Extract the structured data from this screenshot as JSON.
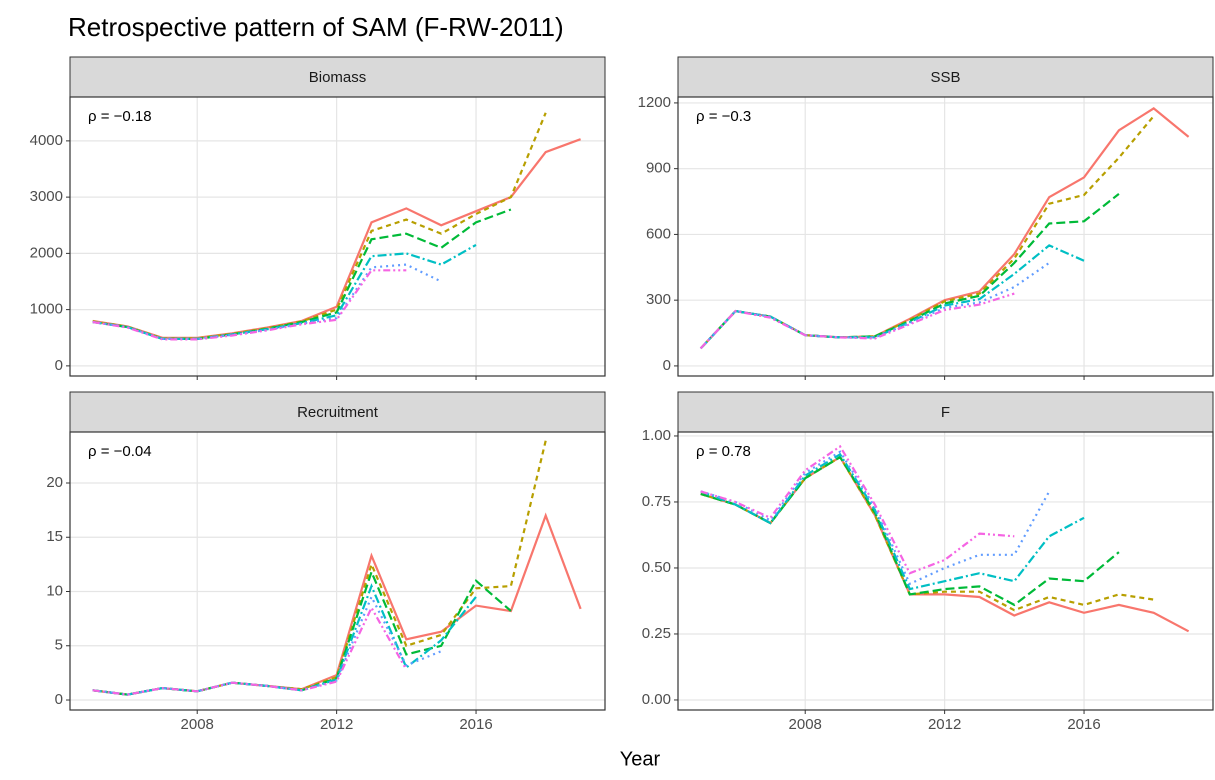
{
  "title": "Retrospective pattern of SAM (F-RW-2011)",
  "x_label": "Year",
  "chart_data": [
    {
      "type": "line",
      "title": "Biomass",
      "annotation": "ρ = −0.18",
      "x": [
        2005,
        2006,
        2007,
        2008,
        2009,
        2010,
        2011,
        2012,
        2013,
        2014,
        2015,
        2016,
        2017,
        2018,
        2019
      ],
      "xlim": [
        2004.35,
        2019.7
      ],
      "xticks": [
        2008,
        2012,
        2016
      ],
      "ylim": [
        -180,
        4780
      ],
      "yticks": [
        0,
        1000,
        2000,
        3000,
        4000
      ],
      "grid": true,
      "series": [
        {
          "color": "#F8766D",
          "dash": "none",
          "values": [
            800,
            700,
            500,
            500,
            580,
            680,
            800,
            1050,
            2550,
            2800,
            2500,
            2750,
            3000,
            3800,
            4030
          ]
        },
        {
          "color": "#B79F00",
          "dash": "5,4",
          "values": [
            790,
            700,
            490,
            490,
            570,
            670,
            790,
            1000,
            2400,
            2600,
            2350,
            2700,
            3000,
            4500,
            null
          ]
        },
        {
          "color": "#00BA38",
          "dash": "9,4",
          "values": [
            780,
            690,
            480,
            480,
            560,
            660,
            780,
            950,
            2250,
            2350,
            2100,
            2550,
            2780,
            null,
            null
          ]
        },
        {
          "color": "#00BFC4",
          "dash": "9,3,2,3",
          "values": [
            780,
            690,
            480,
            480,
            560,
            650,
            760,
            900,
            1950,
            2000,
            1800,
            2150,
            null,
            null,
            null
          ]
        },
        {
          "color": "#619CFF",
          "dash": "2,4",
          "values": [
            780,
            690,
            480,
            480,
            550,
            640,
            750,
            850,
            1750,
            1800,
            1500,
            null,
            null,
            null,
            null
          ]
        },
        {
          "color": "#F564E3",
          "dash": "7,3,2,3,2,3",
          "values": [
            780,
            680,
            470,
            470,
            540,
            630,
            740,
            820,
            1700,
            1700,
            null,
            null,
            null,
            null,
            null
          ]
        }
      ]
    },
    {
      "type": "line",
      "title": "SSB",
      "annotation": "ρ = −0.3",
      "x": [
        2005,
        2006,
        2007,
        2008,
        2009,
        2010,
        2011,
        2012,
        2013,
        2014,
        2015,
        2016,
        2017,
        2018,
        2019
      ],
      "xlim": [
        2004.35,
        2019.7
      ],
      "xticks": [
        2008,
        2012,
        2016
      ],
      "ylim": [
        -46,
        1227
      ],
      "yticks": [
        0,
        300,
        600,
        900,
        1200
      ],
      "grid": true,
      "series": [
        {
          "color": "#F8766D",
          "dash": "none",
          "values": [
            80,
            250,
            225,
            140,
            130,
            135,
            215,
            300,
            340,
            510,
            770,
            860,
            1075,
            1175,
            1045
          ]
        },
        {
          "color": "#B79F00",
          "dash": "5,4",
          "values": [
            80,
            250,
            225,
            140,
            130,
            135,
            210,
            295,
            330,
            490,
            740,
            780,
            950,
            1140,
            null
          ]
        },
        {
          "color": "#00BA38",
          "dash": "9,4",
          "values": [
            80,
            250,
            225,
            140,
            130,
            135,
            205,
            285,
            320,
            470,
            650,
            660,
            785,
            null,
            null
          ]
        },
        {
          "color": "#00BFC4",
          "dash": "9,3,2,3",
          "values": [
            80,
            250,
            225,
            140,
            130,
            130,
            200,
            275,
            305,
            420,
            550,
            480,
            null,
            null,
            null
          ]
        },
        {
          "color": "#619CFF",
          "dash": "2,4",
          "values": [
            80,
            250,
            225,
            140,
            130,
            130,
            195,
            265,
            290,
            360,
            470,
            null,
            null,
            null,
            null
          ]
        },
        {
          "color": "#F564E3",
          "dash": "7,3,2,3,2,3",
          "values": [
            80,
            250,
            220,
            140,
            130,
            125,
            190,
            255,
            280,
            330,
            null,
            null,
            null,
            null,
            null
          ]
        }
      ]
    },
    {
      "type": "line",
      "title": "Recruitment",
      "annotation": "ρ = −0.04",
      "x": [
        2005,
        2006,
        2007,
        2008,
        2009,
        2010,
        2011,
        2012,
        2013,
        2014,
        2015,
        2016,
        2017,
        2018,
        2019
      ],
      "xlim": [
        2004.35,
        2019.7
      ],
      "xticks": [
        2008,
        2012,
        2016
      ],
      "ylim": [
        -0.92,
        24.7
      ],
      "yticks": [
        0,
        5,
        10,
        15,
        20
      ],
      "grid": true,
      "series": [
        {
          "color": "#F8766D",
          "dash": "none",
          "values": [
            0.9,
            0.5,
            1.1,
            0.8,
            1.6,
            1.3,
            1.0,
            2.3,
            13.3,
            5.6,
            6.3,
            8.7,
            8.2,
            17.0,
            8.4
          ]
        },
        {
          "color": "#B79F00",
          "dash": "5,4",
          "values": [
            0.9,
            0.5,
            1.1,
            0.8,
            1.6,
            1.3,
            1.0,
            2.1,
            12.5,
            5.0,
            6.0,
            10.3,
            10.5,
            23.9,
            null
          ]
        },
        {
          "color": "#00BA38",
          "dash": "9,4",
          "values": [
            0.9,
            0.5,
            1.1,
            0.8,
            1.6,
            1.3,
            0.9,
            2.0,
            11.8,
            4.2,
            5.0,
            11.0,
            8.2,
            null,
            null
          ]
        },
        {
          "color": "#00BFC4",
          "dash": "9,3,2,3",
          "values": [
            0.9,
            0.5,
            1.1,
            0.8,
            1.6,
            1.3,
            0.9,
            1.9,
            10.5,
            3.0,
            5.5,
            9.5,
            null,
            null,
            null
          ]
        },
        {
          "color": "#619CFF",
          "dash": "2,4",
          "values": [
            0.9,
            0.5,
            1.1,
            0.8,
            1.6,
            1.3,
            0.9,
            1.8,
            9.5,
            3.2,
            4.5,
            null,
            null,
            null,
            null
          ]
        },
        {
          "color": "#F564E3",
          "dash": "7,3,2,3,2,3",
          "values": [
            0.9,
            0.5,
            1.1,
            0.8,
            1.6,
            1.3,
            0.9,
            1.7,
            8.5,
            2.8,
            null,
            null,
            null,
            null,
            null
          ]
        }
      ]
    },
    {
      "type": "line",
      "title": "F",
      "annotation": "ρ = 0.78",
      "x": [
        2005,
        2006,
        2007,
        2008,
        2009,
        2010,
        2011,
        2012,
        2013,
        2014,
        2015,
        2016,
        2017,
        2018,
        2019
      ],
      "xlim": [
        2004.35,
        2019.7
      ],
      "xticks": [
        2008,
        2012,
        2016
      ],
      "ylim": [
        -0.038,
        1.015
      ],
      "yticks": [
        {
          "value": 0,
          "label": "0.00"
        },
        {
          "value": 0.25,
          "label": "0.25"
        },
        {
          "value": 0.5,
          "label": "0.50"
        },
        {
          "value": 0.75,
          "label": "0.75"
        },
        {
          "value": 1,
          "label": "1.00"
        }
      ],
      "grid": true,
      "series": [
        {
          "color": "#F8766D",
          "dash": "none",
          "values": [
            0.78,
            0.74,
            0.67,
            0.84,
            0.92,
            0.7,
            0.4,
            0.4,
            0.39,
            0.32,
            0.37,
            0.33,
            0.36,
            0.33,
            0.26
          ]
        },
        {
          "color": "#B79F00",
          "dash": "5,4",
          "values": [
            0.78,
            0.74,
            0.67,
            0.84,
            0.92,
            0.7,
            0.4,
            0.41,
            0.41,
            0.34,
            0.39,
            0.36,
            0.4,
            0.38,
            null
          ]
        },
        {
          "color": "#00BA38",
          "dash": "9,4",
          "values": [
            0.78,
            0.74,
            0.67,
            0.84,
            0.92,
            0.71,
            0.4,
            0.42,
            0.43,
            0.36,
            0.46,
            0.45,
            0.56,
            null,
            null
          ]
        },
        {
          "color": "#00BFC4",
          "dash": "9,3,2,3",
          "values": [
            0.79,
            0.74,
            0.67,
            0.85,
            0.93,
            0.72,
            0.42,
            0.45,
            0.48,
            0.45,
            0.62,
            0.69,
            null,
            null,
            null
          ]
        },
        {
          "color": "#619CFF",
          "dash": "2,4",
          "values": [
            0.79,
            0.75,
            0.68,
            0.86,
            0.94,
            0.73,
            0.44,
            0.5,
            0.55,
            0.55,
            0.79,
            null,
            null,
            null,
            null
          ]
        },
        {
          "color": "#F564E3",
          "dash": "7,3,2,3,2,3",
          "values": [
            0.79,
            0.75,
            0.69,
            0.87,
            0.96,
            0.74,
            0.48,
            0.53,
            0.63,
            0.62,
            null,
            null,
            null,
            null,
            null
          ]
        }
      ]
    }
  ]
}
